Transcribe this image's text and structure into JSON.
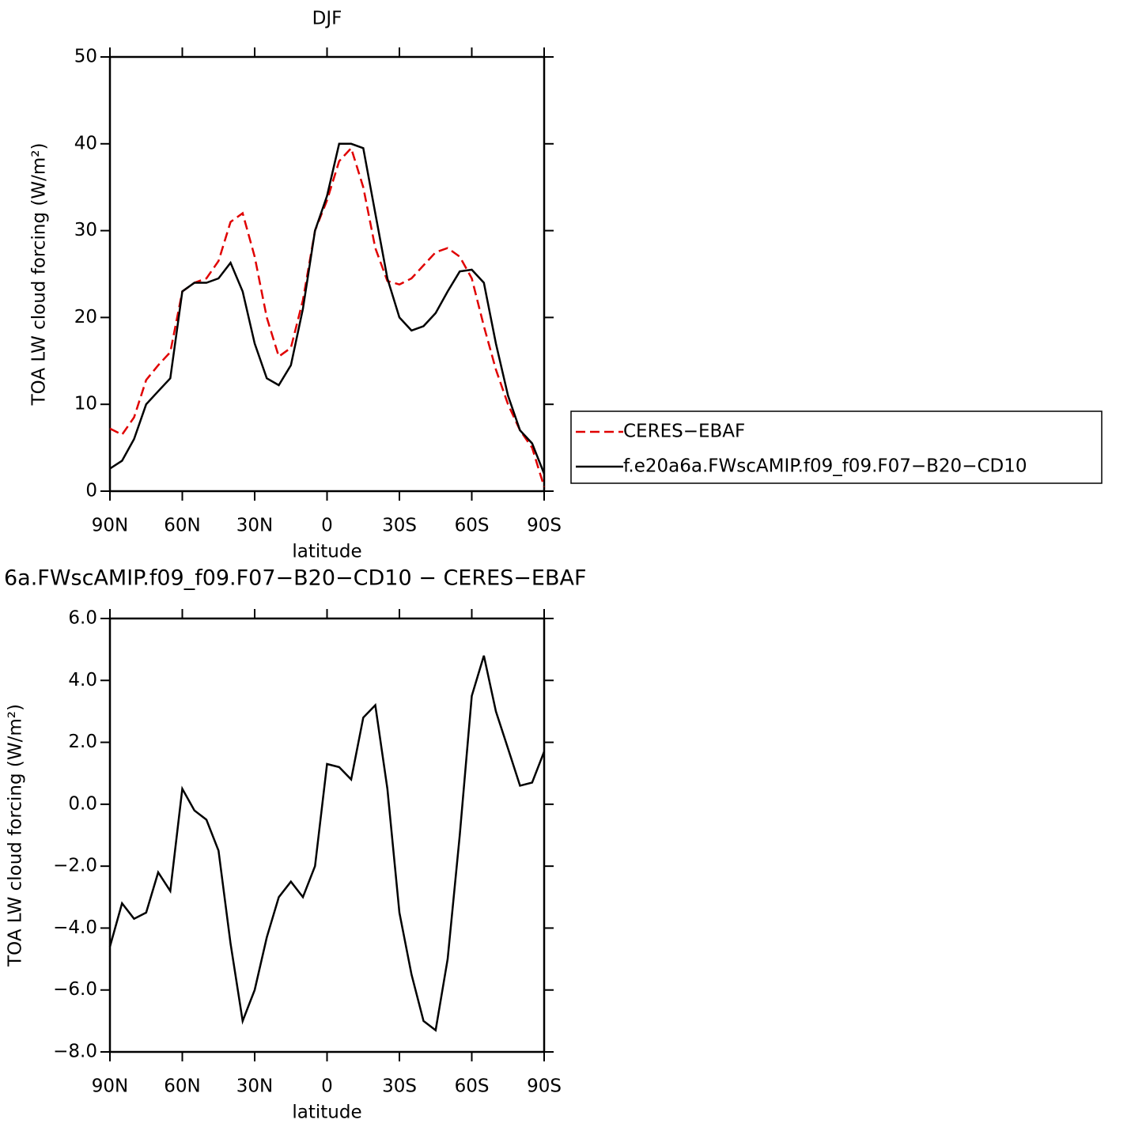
{
  "chart_data": [
    {
      "type": "line",
      "title": "DJF",
      "xlabel": "latitude",
      "ylabel": "TOA LW cloud forcing (W/m²)",
      "x": [
        90,
        85,
        80,
        75,
        70,
        65,
        60,
        55,
        50,
        45,
        40,
        35,
        30,
        25,
        20,
        15,
        10,
        5,
        0,
        -5,
        -10,
        -15,
        -20,
        -25,
        -30,
        -35,
        -40,
        -45,
        -50,
        -55,
        -60,
        -65,
        -70,
        -75,
        -80,
        -85,
        -90
      ],
      "series": [
        {
          "name": "CERES−EBAF",
          "color": "#e00000",
          "dash": true,
          "values": [
            7.2,
            6.5,
            8.5,
            12.8,
            14.5,
            16,
            23,
            24,
            24.5,
            26.5,
            31,
            32,
            27,
            20,
            15.5,
            16.5,
            22,
            30,
            33.5,
            38,
            39.5,
            35,
            28,
            24.2,
            23.8,
            24.5,
            26,
            27.5,
            28,
            27,
            24.5,
            19,
            14,
            10,
            7,
            5,
            0.5
          ]
        },
        {
          "name": "f.e20a6a.FWscAMIP.f09_f09.F07−B20−CD10",
          "color": "#000000",
          "dash": false,
          "values": [
            2.6,
            3.5,
            6,
            10,
            11.5,
            13,
            23,
            24,
            24,
            24.5,
            26.3,
            23,
            17,
            13,
            12.2,
            14.5,
            21,
            30,
            34,
            40,
            40,
            39.5,
            32,
            24.5,
            20,
            18.5,
            19,
            20.5,
            23,
            25.3,
            25.5,
            24,
            17,
            11,
            7,
            5.5,
            2
          ]
        }
      ],
      "xlim": [
        90,
        -90
      ],
      "xticks": [
        {
          "value": 90,
          "label": "90N"
        },
        {
          "value": 60,
          "label": "60N"
        },
        {
          "value": 30,
          "label": "30N"
        },
        0,
        {
          "value": -30,
          "label": "30S"
        },
        {
          "value": -60,
          "label": "60S"
        },
        {
          "value": -90,
          "label": "90S"
        }
      ],
      "ylim": [
        0,
        50
      ],
      "yticks": [
        0,
        10,
        20,
        30,
        40,
        50
      ],
      "legend": "right"
    },
    {
      "type": "line",
      "title": "6a.FWscAMIP.f09_f09.F07−B20−CD10 − CERES−EBAF",
      "xlabel": "latitude",
      "ylabel": "TOA LW cloud forcing (W/m²)",
      "x": [
        90,
        85,
        80,
        75,
        70,
        65,
        60,
        55,
        50,
        45,
        40,
        35,
        30,
        25,
        20,
        15,
        10,
        5,
        0,
        -5,
        -10,
        -15,
        -20,
        -25,
        -30,
        -35,
        -40,
        -45,
        -50,
        -55,
        -60,
        -65,
        -70,
        -75,
        -80,
        -85,
        -90
      ],
      "series": [
        {
          "name": null,
          "color": "#000000",
          "dash": false,
          "values": [
            -4.6,
            -3.2,
            -3.7,
            -3.5,
            -2.2,
            -2.8,
            0.5,
            -0.2,
            -0.5,
            -1.5,
            -4.5,
            -7,
            -6,
            -4.3,
            -3,
            -2.5,
            -3,
            -2,
            1.3,
            1.2,
            0.8,
            2.8,
            3.2,
            0.5,
            -3.5,
            -5.5,
            -7,
            -7.3,
            -5,
            -1,
            3.5,
            4.8,
            3,
            1.8,
            0.6,
            0.7,
            1.7
          ]
        }
      ],
      "xlim": [
        90,
        -90
      ],
      "xticks": [
        {
          "value": 90,
          "label": "90N"
        },
        {
          "value": 60,
          "label": "60N"
        },
        {
          "value": 30,
          "label": "30N"
        },
        0,
        {
          "value": -30,
          "label": "30S"
        },
        {
          "value": -60,
          "label": "60S"
        },
        {
          "value": -90,
          "label": "90S"
        }
      ],
      "ylim": [
        -8,
        6
      ],
      "yticks": [
        {
          "value": -8,
          "label": "−8.0"
        },
        {
          "value": -6,
          "label": "−6.0"
        },
        {
          "value": -4,
          "label": "−4.0"
        },
        {
          "value": -2,
          "label": "−2.0"
        },
        {
          "value": 0,
          "label": "0.0"
        },
        {
          "value": 2,
          "label": "2.0"
        },
        {
          "value": 4,
          "label": "4.0"
        },
        {
          "value": 6,
          "label": "6.0"
        }
      ]
    }
  ]
}
